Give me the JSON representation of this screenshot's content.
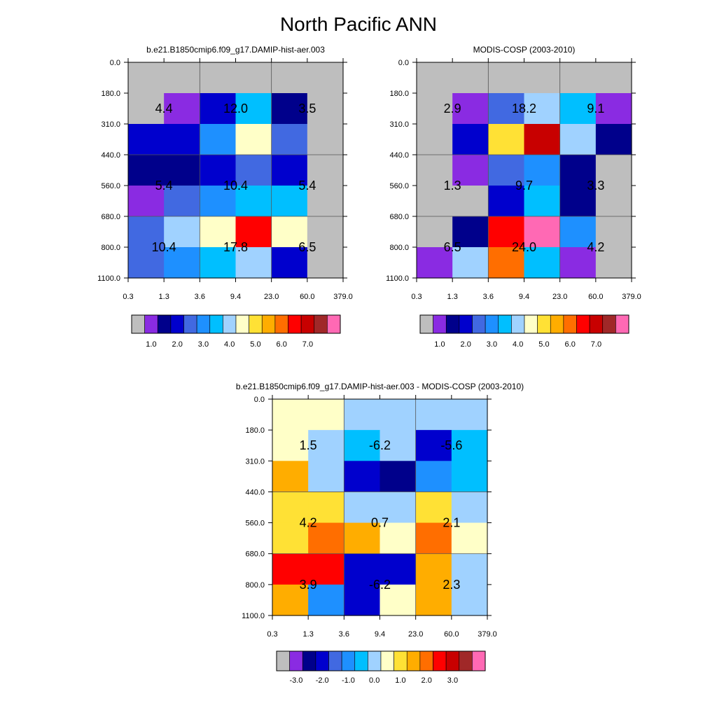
{
  "figure": {
    "title": "North Pacific ANN"
  },
  "palette": {
    "main": [
      "#bebebe",
      "#8a2be2",
      "#00008b",
      "#0000cd",
      "#4169e1",
      "#1e90ff",
      "#00bfff",
      "#a0d2ff",
      "#ffffc8",
      "#ffe135",
      "#ffad00",
      "#ff6e00",
      "#ff0000",
      "#c80000",
      "#a02828",
      "#ff69b4"
    ],
    "diff": [
      "#bebebe",
      "#8a2be2",
      "#00008b",
      "#0000cd",
      "#4169e1",
      "#1e90ff",
      "#00bfff",
      "#a0d2ff",
      "#ffffc8",
      "#ffe135",
      "#ffad00",
      "#ff6e00",
      "#ff0000",
      "#c80000",
      "#a02828",
      "#ff69b4"
    ]
  },
  "chart_data": [
    {
      "type": "heatmap",
      "title": "b.e21.B1850cmip6.f09_g17.DAMIP-hist-aer.003",
      "x_ticks": [
        "0.3",
        "1.3",
        "3.6",
        "9.4",
        "23.0",
        "60.0",
        "379.0"
      ],
      "y_ticks": [
        "0.0",
        "180.0",
        "310.0",
        "440.0",
        "560.0",
        "680.0",
        "800.0",
        "1100.0"
      ],
      "cell_colors": [
        [
          0,
          0,
          0,
          0,
          0,
          0
        ],
        [
          0,
          1,
          3,
          6,
          2,
          0
        ],
        [
          3,
          3,
          5,
          8,
          4,
          0
        ],
        [
          2,
          2,
          3,
          4,
          3,
          0
        ],
        [
          1,
          4,
          5,
          6,
          6,
          0
        ],
        [
          4,
          7,
          8,
          12,
          8,
          0
        ],
        [
          4,
          5,
          6,
          7,
          3,
          0
        ]
      ],
      "block_labels": [
        [
          "4.4",
          "12.0",
          "3.5"
        ],
        [
          "5.4",
          "10.4",
          "5.4"
        ],
        [
          "10.4",
          "17.8",
          "6.5"
        ]
      ],
      "colorbar": {
        "labels": [
          "1.0",
          "2.0",
          "3.0",
          "4.0",
          "5.0",
          "6.0",
          "7.0"
        ]
      }
    },
    {
      "type": "heatmap",
      "title": "MODIS-COSP (2003-2010)",
      "x_ticks": [
        "0.3",
        "1.3",
        "3.6",
        "9.4",
        "23.0",
        "60.0",
        "379.0"
      ],
      "y_ticks": [
        "0.0",
        "180.0",
        "310.0",
        "440.0",
        "560.0",
        "680.0",
        "800.0",
        "1100.0"
      ],
      "cell_colors": [
        [
          0,
          0,
          0,
          0,
          0,
          0
        ],
        [
          0,
          1,
          4,
          7,
          6,
          1
        ],
        [
          0,
          3,
          9,
          13,
          7,
          2
        ],
        [
          0,
          1,
          4,
          5,
          2,
          0
        ],
        [
          0,
          0,
          3,
          6,
          2,
          0
        ],
        [
          0,
          2,
          12,
          15,
          5,
          0
        ],
        [
          1,
          7,
          11,
          6,
          1,
          0
        ]
      ],
      "block_labels": [
        [
          "2.9",
          "18.2",
          "9.1"
        ],
        [
          "1.3",
          "9.7",
          "3.3"
        ],
        [
          "6.5",
          "24.0",
          "4.2"
        ]
      ],
      "colorbar": {
        "labels": [
          "1.0",
          "2.0",
          "3.0",
          "4.0",
          "5.0",
          "6.0",
          "7.0"
        ]
      }
    },
    {
      "type": "heatmap",
      "title": "b.e21.B1850cmip6.f09_g17.DAMIP-hist-aer.003 - MODIS-COSP (2003-2010)",
      "x_ticks": [
        "0.3",
        "1.3",
        "3.6",
        "9.4",
        "23.0",
        "60.0",
        "379.0"
      ],
      "y_ticks": [
        "0.0",
        "180.0",
        "310.0",
        "440.0",
        "560.0",
        "680.0",
        "800.0",
        "1100.0"
      ],
      "cell_colors": [
        [
          8,
          8,
          7,
          7,
          7,
          7
        ],
        [
          8,
          7,
          6,
          7,
          3,
          6
        ],
        [
          10,
          7,
          3,
          2,
          5,
          6
        ],
        [
          9,
          9,
          7,
          7,
          9,
          7
        ],
        [
          9,
          11,
          10,
          8,
          11,
          8
        ],
        [
          12,
          12,
          3,
          3,
          10,
          7
        ],
        [
          10,
          5,
          3,
          8,
          10,
          7
        ]
      ],
      "block_labels": [
        [
          "1.5",
          "-6.2",
          "-5.6"
        ],
        [
          "4.2",
          "0.7",
          "2.1"
        ],
        [
          "3.9",
          "-6.2",
          "2.3"
        ]
      ],
      "colorbar": {
        "labels": [
          "-3.0",
          "-2.0",
          "-1.0",
          "0.0",
          "1.0",
          "2.0",
          "3.0"
        ]
      }
    }
  ]
}
